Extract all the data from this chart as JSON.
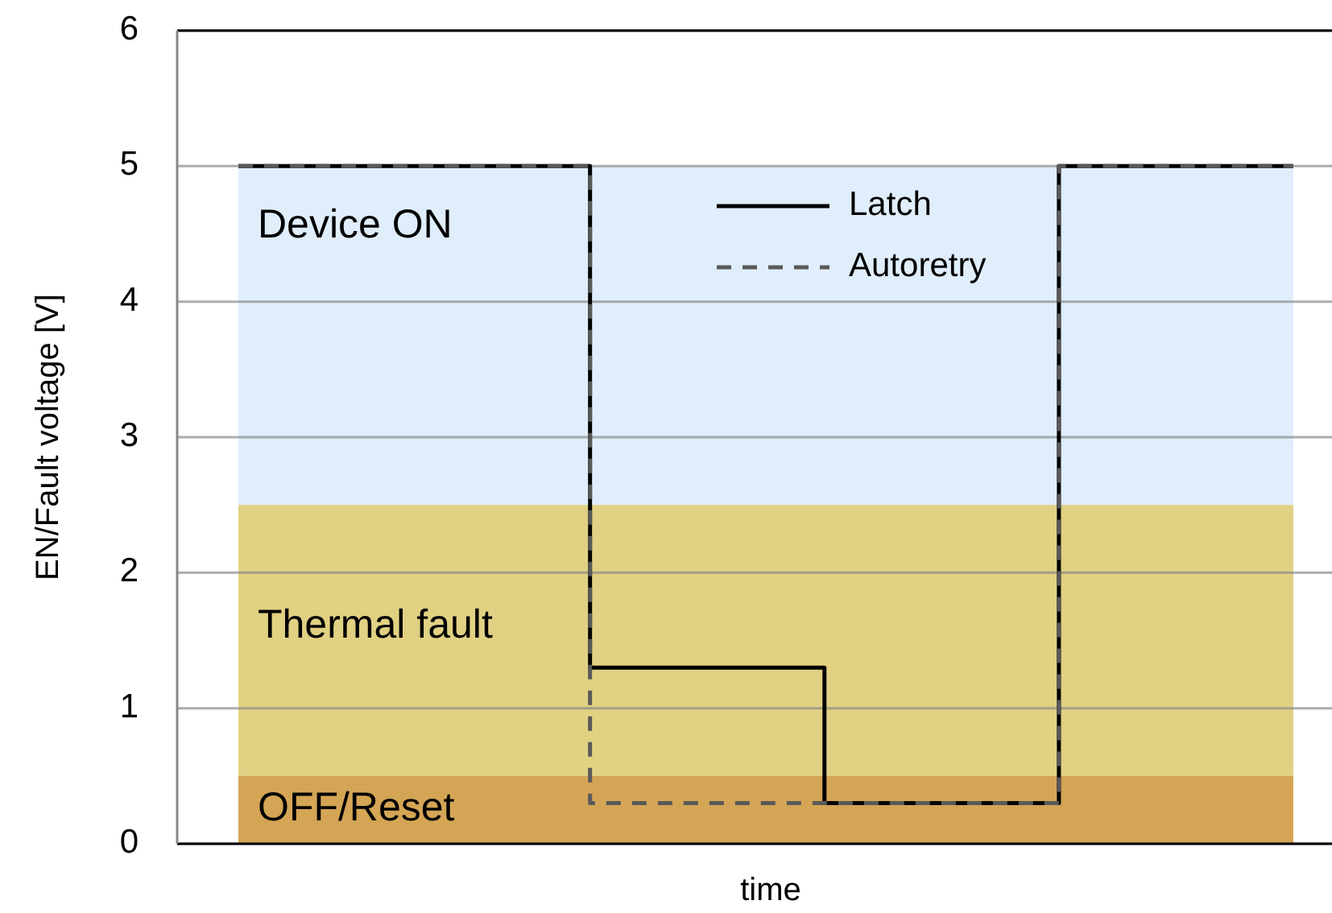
{
  "chart_data": {
    "type": "step",
    "xlabel": "time",
    "ylabel": "EN/Fault voltage [V]",
    "categories": [
      null,
      null,
      null,
      null,
      null,
      null,
      null,
      null,
      null,
      null
    ],
    "series": [
      {
        "name": "Latch",
        "color": "#000000",
        "line_style": "solid",
        "values": [
          5,
          5,
          5,
          1.3,
          1.3,
          0.3,
          0.3,
          5,
          5,
          5
        ]
      },
      {
        "name": "Autoretry",
        "color": "#595959",
        "line_style": "dashed",
        "values": [
          5,
          5,
          5,
          0.3,
          0.3,
          0.3,
          0.3,
          5,
          5,
          5
        ]
      }
    ],
    "bands": [
      {
        "axis": "y",
        "from": 2.5,
        "to": 5,
        "label": "Device ON",
        "color": "#e0eefb"
      },
      {
        "axis": "y",
        "from": 0.5,
        "to": 2.5,
        "label": "Thermal fault",
        "color": "#e1d183"
      },
      {
        "axis": "y",
        "from": 0,
        "to": 0.5,
        "label": "OFF/Reset",
        "color": "#d3a555"
      }
    ],
    "ylim": [
      0,
      6
    ],
    "yticks": [
      0,
      1,
      2,
      3,
      4,
      5,
      6
    ],
    "grid": "y",
    "legend": "top",
    "tick_labels": "y"
  }
}
